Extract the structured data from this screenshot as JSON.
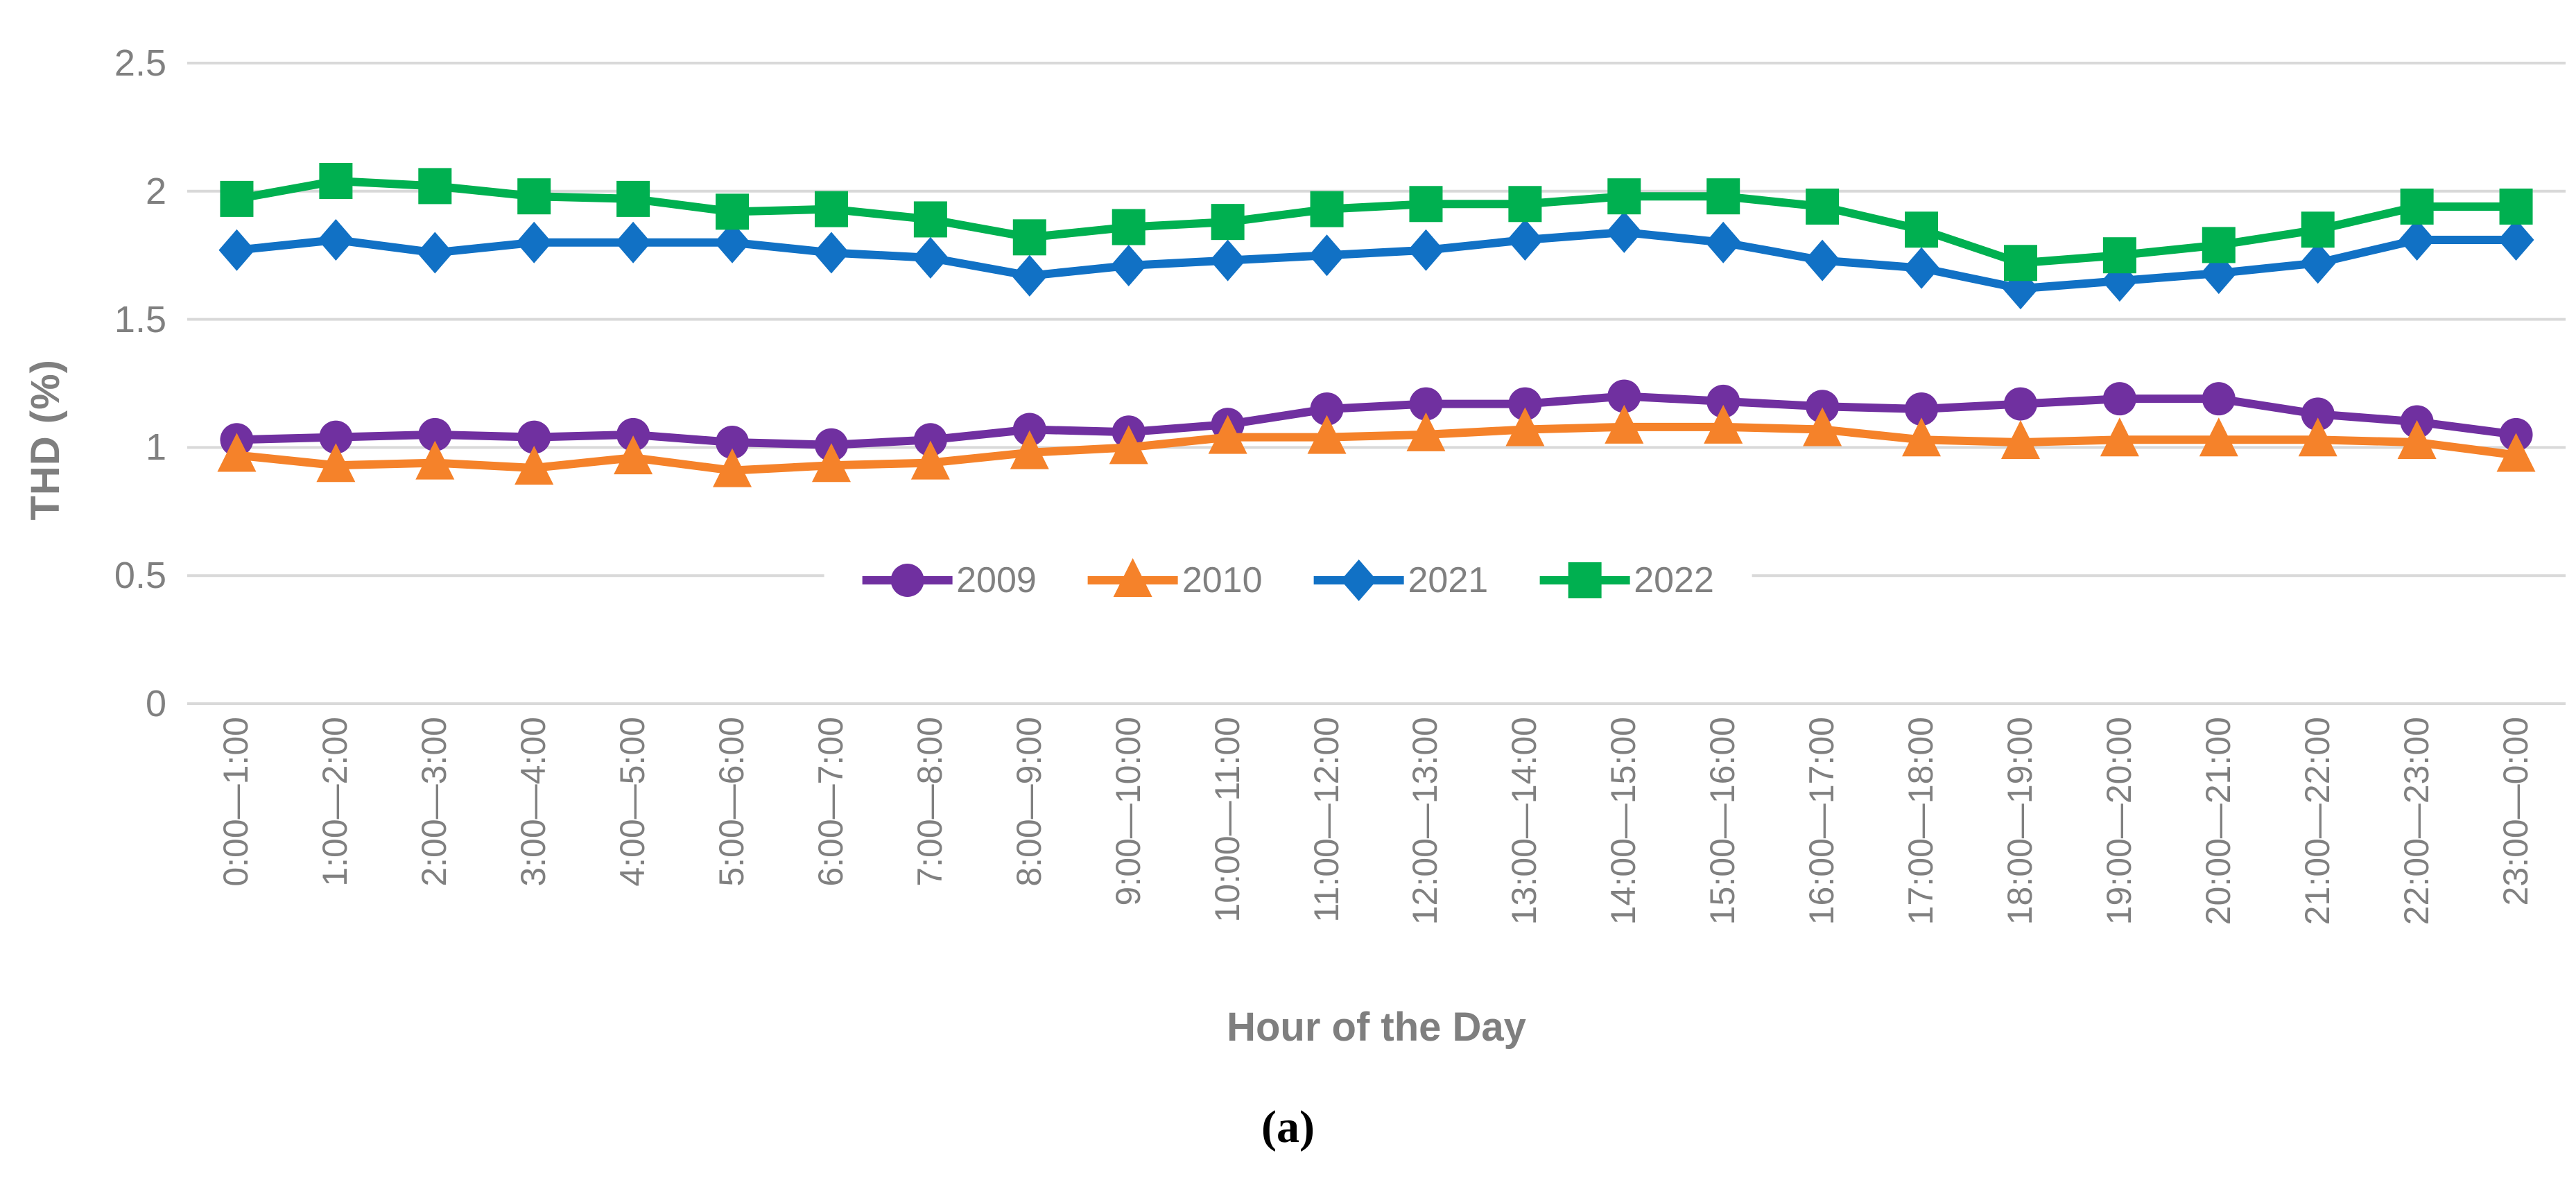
{
  "caption": {
    "text": "(a)"
  },
  "colors": {
    "background": "#FFFFFF",
    "gridline": "#D9D9D9",
    "axis_tick_text": "#808080",
    "axis_title_text": "#7F7F7F",
    "caption_text": "#000000",
    "series_2009": "#7030A0",
    "series_2010": "#F5822A",
    "series_2021": "#1171C5",
    "series_2022": "#00B050"
  },
  "chart_data": {
    "type": "line",
    "title": "",
    "xlabel": "Hour of the Day",
    "ylabel": "THD (%)",
    "ylim": [
      0,
      2.5
    ],
    "y_ticks": [
      "2.5",
      "2",
      "1.5",
      "1",
      "0.5",
      "0"
    ],
    "y_tick_values": [
      2.5,
      2,
      1.5,
      1,
      0.5,
      0
    ],
    "grid": true,
    "legend_position": "center-middle-overlay",
    "categories": [
      "0:00—1:00",
      "1:00—2:00",
      "2:00—3:00",
      "3:00—4:00",
      "4:00—5:00",
      "5:00—6:00",
      "6:00—7:00",
      "7:00—8:00",
      "8:00—9:00",
      "9:00—10:00",
      "10:00—11:00",
      "11:00—12:00",
      "12:00—13:00",
      "13:00—14:00",
      "14:00—15:00",
      "15:00—16:00",
      "16:00—17:00",
      "17:00—18:00",
      "18:00—19:00",
      "19:00—20:00",
      "20:00—21:00",
      "21:00—22:00",
      "22:00—23:00",
      "23:00—0:00"
    ],
    "series": [
      {
        "name": "2009",
        "color": "#7030A0",
        "marker": "circle",
        "values": [
          1.03,
          1.04,
          1.05,
          1.04,
          1.05,
          1.02,
          1.01,
          1.03,
          1.07,
          1.06,
          1.09,
          1.15,
          1.17,
          1.17,
          1.2,
          1.18,
          1.16,
          1.15,
          1.17,
          1.19,
          1.19,
          1.13,
          1.1,
          1.05
        ]
      },
      {
        "name": "2010",
        "color": "#F5822A",
        "marker": "triangle",
        "values": [
          0.97,
          0.93,
          0.94,
          0.92,
          0.96,
          0.91,
          0.93,
          0.94,
          0.98,
          1.0,
          1.04,
          1.04,
          1.05,
          1.07,
          1.08,
          1.08,
          1.07,
          1.03,
          1.02,
          1.03,
          1.03,
          1.03,
          1.02,
          0.97
        ]
      },
      {
        "name": "2021",
        "color": "#1171C5",
        "marker": "diamond",
        "values": [
          1.77,
          1.81,
          1.76,
          1.8,
          1.8,
          1.8,
          1.76,
          1.74,
          1.67,
          1.71,
          1.73,
          1.75,
          1.77,
          1.81,
          1.84,
          1.8,
          1.73,
          1.7,
          1.62,
          1.65,
          1.68,
          1.72,
          1.81,
          1.81
        ]
      },
      {
        "name": "2022",
        "color": "#00B050",
        "marker": "square",
        "values": [
          1.97,
          2.04,
          2.02,
          1.98,
          1.97,
          1.92,
          1.93,
          1.89,
          1.82,
          1.86,
          1.88,
          1.93,
          1.95,
          1.95,
          1.98,
          1.98,
          1.94,
          1.85,
          1.72,
          1.75,
          1.79,
          1.85,
          1.94,
          1.94
        ]
      }
    ]
  }
}
